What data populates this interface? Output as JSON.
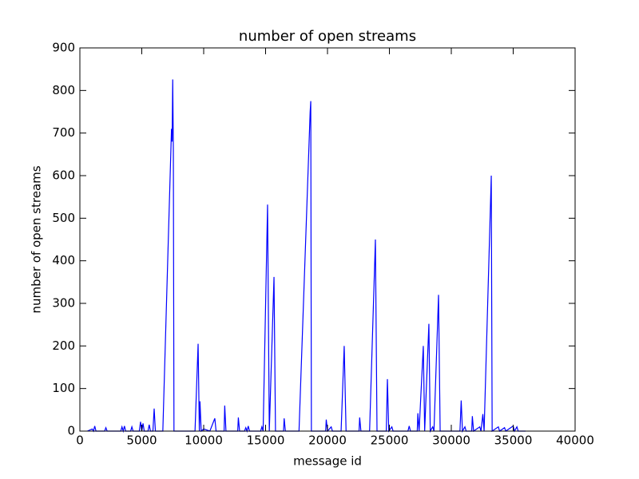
{
  "chart_data": {
    "type": "line",
    "title": "number of open streams",
    "x_label": "message id",
    "y_label": "number of open streams",
    "x": [
      600,
      1000,
      1100,
      1200,
      1300,
      2000,
      2100,
      2200,
      3300,
      3400,
      3500,
      3600,
      3700,
      4100,
      4200,
      4300,
      4800,
      4900,
      5000,
      5100,
      5200,
      5500,
      5600,
      5700,
      5900,
      6000,
      6100,
      6700,
      7400,
      7450,
      7500,
      7550,
      7600,
      9300,
      9550,
      9650,
      9700,
      9800,
      10000,
      10500,
      10900,
      11000,
      11650,
      11700,
      11800,
      12750,
      12800,
      12900,
      13300,
      13400,
      13500,
      13600,
      13700,
      14600,
      14700,
      14800,
      15160,
      15300,
      15680,
      15800,
      16450,
      16500,
      16600,
      17700,
      18600,
      18650,
      18700,
      19850,
      19900,
      20000,
      20300,
      20400,
      21100,
      21350,
      21500,
      22550,
      22600,
      22700,
      23400,
      23870,
      24000,
      24750,
      24840,
      24950,
      25200,
      25300,
      26500,
      26600,
      26700,
      27250,
      27300,
      27400,
      27740,
      27850,
      28190,
      28300,
      28500,
      28600,
      28970,
      29100,
      30700,
      30800,
      30900,
      31100,
      31200,
      31650,
      31700,
      31800,
      32300,
      32400,
      32550,
      32650,
      33230,
      33300,
      33800,
      33900,
      34300,
      34400,
      35000,
      35100,
      35300,
      35400,
      36000
    ],
    "series": [
      {
        "name": "open streams",
        "color": "#0000ff",
        "values": [
          0,
          5,
          0,
          12,
          0,
          0,
          8,
          0,
          0,
          10,
          0,
          12,
          0,
          0,
          10,
          0,
          0,
          22,
          0,
          18,
          0,
          0,
          15,
          0,
          0,
          53,
          0,
          0,
          710,
          680,
          826,
          660,
          0,
          0,
          205,
          0,
          70,
          0,
          5,
          0,
          30,
          0,
          0,
          60,
          0,
          0,
          32,
          0,
          0,
          8,
          0,
          12,
          0,
          0,
          10,
          0,
          532,
          0,
          362,
          0,
          0,
          30,
          0,
          0,
          750,
          775,
          0,
          0,
          27,
          0,
          10,
          0,
          0,
          200,
          0,
          0,
          32,
          0,
          0,
          450,
          0,
          0,
          122,
          0,
          10,
          0,
          0,
          12,
          0,
          0,
          42,
          0,
          200,
          0,
          252,
          0,
          10,
          0,
          320,
          0,
          0,
          72,
          0,
          10,
          0,
          0,
          35,
          0,
          10,
          0,
          40,
          0,
          600,
          0,
          10,
          0,
          8,
          0,
          12,
          0,
          10,
          0,
          0
        ]
      }
    ],
    "xlim": [
      0,
      40000
    ],
    "xticks": [
      0,
      5000,
      10000,
      15000,
      20000,
      25000,
      30000,
      35000,
      40000
    ],
    "ylim": [
      0,
      900
    ],
    "yticks": [
      0,
      100,
      200,
      300,
      400,
      500,
      600,
      700,
      800,
      900
    ]
  }
}
